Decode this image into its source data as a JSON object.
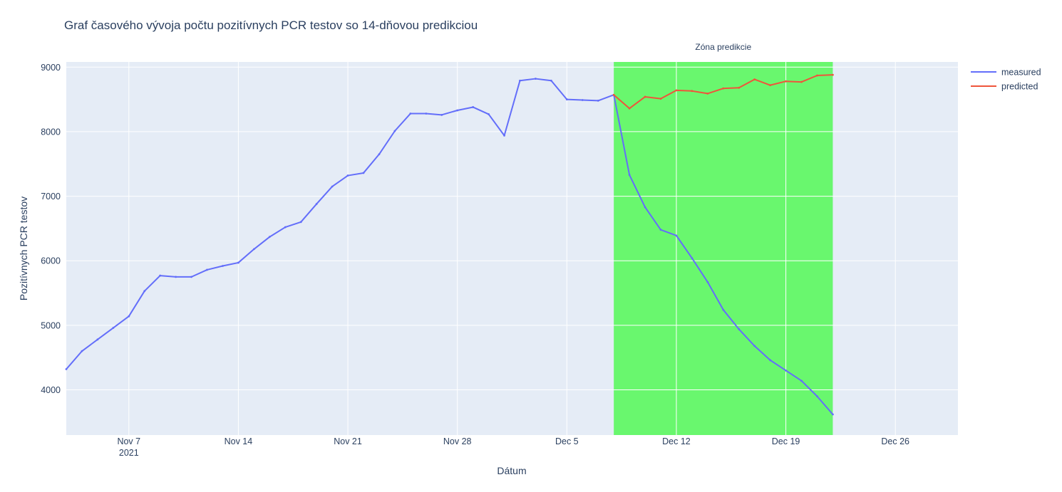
{
  "chart_data": {
    "type": "line",
    "title": "Graf časového vývoja počtu pozitívnych PCR testov so 14-dňovou predikciou",
    "xlabel": "Dátum",
    "ylabel": "Pozitívnych PCR testov",
    "xlim": [
      "2021-11-03",
      "2021-12-30"
    ],
    "ylim": [
      3300,
      9080
    ],
    "grid": true,
    "legend_position": "top-right",
    "x_ticks": [
      {
        "date": "2021-11-07",
        "label": "Nov 7",
        "sublabel": "2021"
      },
      {
        "date": "2021-11-14",
        "label": "Nov 14",
        "sublabel": ""
      },
      {
        "date": "2021-11-21",
        "label": "Nov 21",
        "sublabel": ""
      },
      {
        "date": "2021-11-28",
        "label": "Nov 28",
        "sublabel": ""
      },
      {
        "date": "2021-12-05",
        "label": "Dec 5",
        "sublabel": ""
      },
      {
        "date": "2021-12-12",
        "label": "Dec 12",
        "sublabel": ""
      },
      {
        "date": "2021-12-19",
        "label": "Dec 19",
        "sublabel": ""
      },
      {
        "date": "2021-12-26",
        "label": "Dec 26",
        "sublabel": ""
      }
    ],
    "y_ticks": [
      4000,
      5000,
      6000,
      7000,
      8000,
      9000
    ],
    "prediction_zone": {
      "label": "Zóna predikcie",
      "start": "2021-12-08",
      "end": "2021-12-22",
      "color": "#69f76e"
    },
    "series": [
      {
        "name": "measured",
        "color": "#636efa",
        "x": [
          "2021-11-03",
          "2021-11-04",
          "2021-11-05",
          "2021-11-06",
          "2021-11-07",
          "2021-11-08",
          "2021-11-09",
          "2021-11-10",
          "2021-11-11",
          "2021-11-12",
          "2021-11-13",
          "2021-11-14",
          "2021-11-15",
          "2021-11-16",
          "2021-11-17",
          "2021-11-18",
          "2021-11-19",
          "2021-11-20",
          "2021-11-21",
          "2021-11-22",
          "2021-11-23",
          "2021-11-24",
          "2021-11-25",
          "2021-11-26",
          "2021-11-27",
          "2021-11-28",
          "2021-11-29",
          "2021-11-30",
          "2021-12-01",
          "2021-12-02",
          "2021-12-03",
          "2021-12-04",
          "2021-12-05",
          "2021-12-06",
          "2021-12-07",
          "2021-12-08",
          "2021-12-09",
          "2021-12-10",
          "2021-12-11",
          "2021-12-12",
          "2021-12-13",
          "2021-12-14",
          "2021-12-15",
          "2021-12-16",
          "2021-12-17",
          "2021-12-18",
          "2021-12-19",
          "2021-12-20",
          "2021-12-21",
          "2021-12-22"
        ],
        "y": [
          4320,
          4600,
          4780,
          4960,
          5140,
          5530,
          5770,
          5750,
          5750,
          5860,
          5920,
          5970,
          6180,
          6370,
          6520,
          6600,
          6880,
          7150,
          7320,
          7360,
          7650,
          8010,
          8280,
          8280,
          8260,
          8330,
          8380,
          8270,
          7940,
          8790,
          8820,
          8790,
          8500,
          8490,
          8480,
          8570,
          7330,
          6830,
          6480,
          6390,
          6040,
          5670,
          5240,
          4940,
          4680,
          4460,
          4300,
          4140,
          3900,
          3620
        ]
      },
      {
        "name": "predicted",
        "color": "#ef553b",
        "x": [
          "2021-12-08",
          "2021-12-09",
          "2021-12-10",
          "2021-12-11",
          "2021-12-12",
          "2021-12-13",
          "2021-12-14",
          "2021-12-15",
          "2021-12-16",
          "2021-12-17",
          "2021-12-18",
          "2021-12-19",
          "2021-12-20",
          "2021-12-21",
          "2021-12-22"
        ],
        "y": [
          8570,
          8360,
          8540,
          8510,
          8640,
          8630,
          8590,
          8670,
          8680,
          8810,
          8720,
          8780,
          8770,
          8870,
          8880
        ]
      }
    ]
  }
}
